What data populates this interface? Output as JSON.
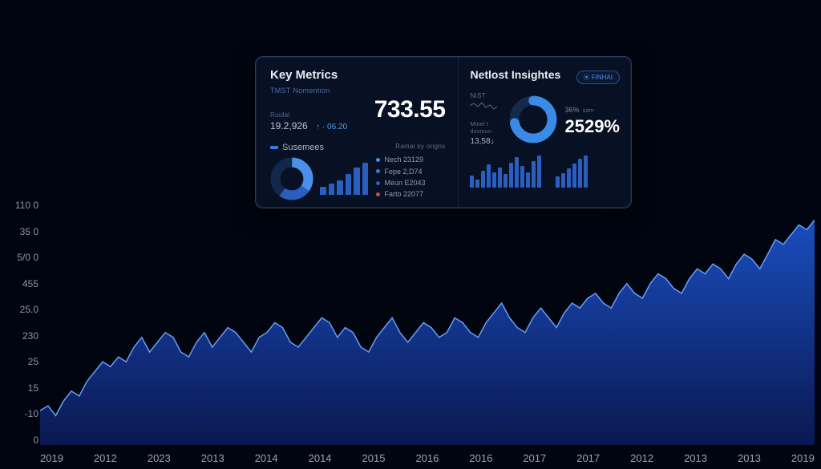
{
  "background_color": "#000510",
  "main_chart": {
    "type": "area",
    "y_ticks": [
      "110 0",
      "35 0",
      "5/0 0",
      "455",
      "25.0",
      "230",
      "25",
      "15",
      "-10",
      "0"
    ],
    "x_ticks": [
      "2019",
      "2012",
      "2023",
      "2013",
      "2014",
      "2014",
      "2015",
      "2016",
      "2016",
      "2017",
      "2017",
      "2012",
      "2013",
      "2013",
      "2019"
    ],
    "line_color": "#6a9ef5",
    "fill_top_color": "#1a4dbe",
    "fill_bottom_color": "#0a1850",
    "line_width": 1.5,
    "xlim": [
      0,
      100
    ],
    "ylim": [
      0,
      100
    ],
    "series_norm": [
      14,
      16,
      12,
      18,
      22,
      20,
      26,
      30,
      34,
      32,
      36,
      34,
      40,
      44,
      38,
      42,
      46,
      44,
      38,
      36,
      42,
      46,
      40,
      44,
      48,
      46,
      42,
      38,
      44,
      46,
      50,
      48,
      42,
      40,
      44,
      48,
      52,
      50,
      44,
      48,
      46,
      40,
      38,
      44,
      48,
      52,
      46,
      42,
      46,
      50,
      48,
      44,
      46,
      52,
      50,
      46,
      44,
      50,
      54,
      58,
      52,
      48,
      46,
      52,
      56,
      52,
      48,
      54,
      58,
      56,
      60,
      62,
      58,
      56,
      62,
      66,
      62,
      60,
      66,
      70,
      68,
      64,
      62,
      68,
      72,
      70,
      74,
      72,
      68,
      74,
      78,
      76,
      72,
      78,
      84,
      82,
      86,
      90,
      88,
      92
    ],
    "label_fontsize": 12,
    "label_color": "#8a94a8"
  },
  "card": {
    "left": {
      "title": "Key Metrics",
      "sublabel": "TMST Nomention",
      "sublabel2": "Ruidal",
      "small_value": "19.2,926",
      "delta": "↑ · 06.20",
      "big_value": "733.55",
      "sub_section_title": "Susemees",
      "legend_title": "Ramal by origns",
      "donut": {
        "type": "donut",
        "segments": [
          {
            "pct": 35,
            "color": "#4a90e8"
          },
          {
            "pct": 25,
            "color": "#2a5fc0"
          },
          {
            "pct": 40,
            "color": "#12284a"
          }
        ],
        "inner_r": 0.55
      },
      "mini_bars": {
        "type": "bar",
        "values": [
          10,
          14,
          18,
          26,
          34,
          40
        ],
        "color": "#2a5fc0"
      },
      "legend": [
        {
          "color": "#4a90e8",
          "label": "Nech 23129"
        },
        {
          "color": "#3a7ad8",
          "label": "Fepe 2,D74"
        },
        {
          "color": "#2a5fc0",
          "label": "Meun E2043"
        },
        {
          "color": "#d04a4a",
          "label": "Farto 22077"
        }
      ]
    },
    "right": {
      "title": "Netlost Insightes",
      "badge": "⦿ FINHAI",
      "sublabel": "NIST",
      "small_value": "13,58↓",
      "side_label": "Minel t dosmun",
      "donut": {
        "type": "donut-arc",
        "pct": 72,
        "color": "#3a8ae8",
        "track_color": "#132a4a",
        "inner_r": 0.62
      },
      "pct_top_label": "36%",
      "pct_top_sub": "tutm",
      "pct_big": "2529%",
      "bars_left": {
        "type": "bar",
        "values": [
          14,
          10,
          20,
          28,
          18,
          24,
          16,
          30,
          36,
          26,
          18,
          32,
          38
        ],
        "color": "#2a5fc0"
      },
      "bars_right": {
        "type": "bar",
        "values": [
          14,
          18,
          24,
          30,
          36,
          40
        ],
        "color": "#2a5fc0"
      }
    },
    "border_color": "#2a3d5e",
    "bg_color": "rgba(10,20,40,0.82)"
  }
}
